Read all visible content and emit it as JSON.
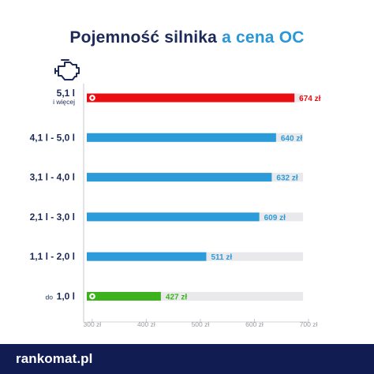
{
  "title": {
    "part1": "Pojemność silnika",
    "part2": "a cena OC"
  },
  "icon": "engine-icon",
  "colors": {
    "title": "#1c2a5a",
    "title_accent": "#2a97d8",
    "bar_default": "#2b9bd9",
    "bar_max": "#ea0e13",
    "bar_min": "#3cb31c",
    "track": "#e9e9ec",
    "label": "#1c2a5a",
    "footer": "#111d52"
  },
  "chart_data": {
    "type": "bar",
    "orientation": "horizontal",
    "categories": [
      {
        "prefix": "",
        "label": "5,1 l",
        "sub": "i więcej"
      },
      {
        "prefix": "",
        "label": "4,1 l - 5,0 l",
        "sub": ""
      },
      {
        "prefix": "",
        "label": "3,1 l - 4,0 l",
        "sub": ""
      },
      {
        "prefix": "",
        "label": "2,1 l - 3,0 l",
        "sub": ""
      },
      {
        "prefix": "",
        "label": "1,1 l - 2,0 l",
        "sub": ""
      },
      {
        "prefix": "do",
        "label": "1,0 l",
        "sub": ""
      }
    ],
    "values": [
      674,
      640,
      632,
      609,
      511,
      427
    ],
    "value_labels": [
      "674 zł",
      "640 zł",
      "632 zł",
      "609 zł",
      "511 zł",
      "427 zł"
    ],
    "highlight": [
      "max",
      "none",
      "none",
      "none",
      "none",
      "min"
    ],
    "xlim": [
      290,
      700
    ],
    "track_end": 690,
    "xticks": [
      300,
      400,
      500,
      600,
      700
    ],
    "xtick_labels": [
      "300 zł",
      "400 zł",
      "500 zł",
      "600 zł",
      "700 zł"
    ],
    "grid": false,
    "legend": "none"
  },
  "footer": {
    "logo": "rankomat.pl"
  }
}
